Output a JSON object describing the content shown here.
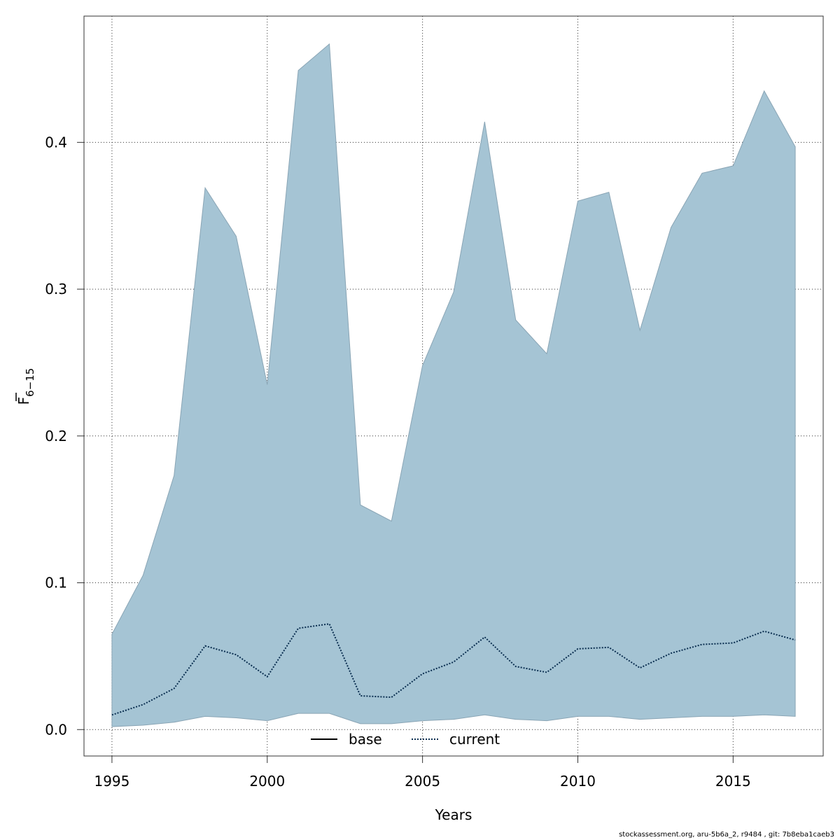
{
  "chart_data": {
    "type": "area",
    "xlabel": "Years",
    "ylabel_main": "F",
    "ylabel_sub": "6−15",
    "xlim": [
      1994.1,
      2017.9
    ],
    "ylim": [
      -0.018,
      0.486
    ],
    "x_ticks": [
      1995,
      2000,
      2005,
      2010,
      2015
    ],
    "y_ticks": [
      0.0,
      0.1,
      0.2,
      0.3,
      0.4
    ],
    "y_tick_labels": [
      "0.0",
      "0.1",
      "0.2",
      "0.3",
      "0.4"
    ],
    "grid": true,
    "legend_position": "bottom-center",
    "legend": [
      {
        "label": "base",
        "style": "solid"
      },
      {
        "label": "current",
        "style": "dotted"
      }
    ],
    "x": [
      1995,
      1996,
      1997,
      1998,
      1999,
      2000,
      2001,
      2002,
      2003,
      2004,
      2005,
      2006,
      2007,
      2008,
      2009,
      2010,
      2011,
      2012,
      2013,
      2014,
      2015,
      2016,
      2017
    ],
    "band_upper": [
      0.065,
      0.105,
      0.173,
      0.369,
      0.336,
      0.235,
      0.449,
      0.467,
      0.153,
      0.142,
      0.248,
      0.298,
      0.414,
      0.279,
      0.256,
      0.36,
      0.366,
      0.272,
      0.342,
      0.379,
      0.384,
      0.435,
      0.397
    ],
    "band_lower": [
      0.002,
      0.003,
      0.005,
      0.009,
      0.008,
      0.006,
      0.011,
      0.011,
      0.004,
      0.004,
      0.006,
      0.007,
      0.01,
      0.007,
      0.006,
      0.009,
      0.009,
      0.007,
      0.008,
      0.009,
      0.009,
      0.01,
      0.009
    ],
    "series": [
      {
        "name": "current",
        "values": [
          0.01,
          0.017,
          0.028,
          0.057,
          0.051,
          0.036,
          0.069,
          0.072,
          0.023,
          0.022,
          0.038,
          0.046,
          0.063,
          0.043,
          0.039,
          0.055,
          0.056,
          0.042,
          0.052,
          0.058,
          0.059,
          0.067,
          0.061
        ]
      }
    ],
    "colors": {
      "band_fill": "#a5c4d4",
      "band_stroke": "#8aa5b5",
      "current_line": "#0a2e50",
      "grid": "#333333"
    }
  },
  "footer": "stockassessment.org, aru-5b6a_2, r9484 , git: 7b8eba1caeb3"
}
